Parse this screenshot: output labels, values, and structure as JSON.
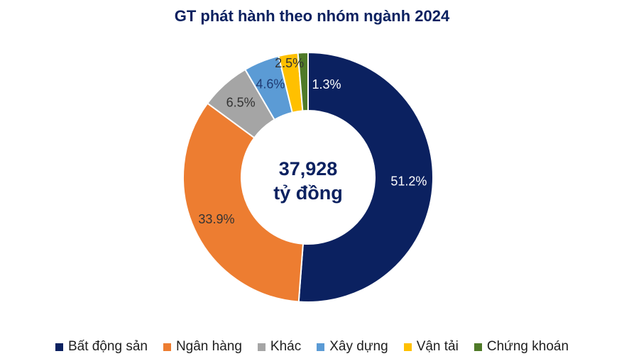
{
  "chart_data": {
    "type": "pie",
    "variant": "donut",
    "title": "GT phát hành theo nhóm ngành 2024",
    "center_label": [
      "37,928",
      "tỷ đồng"
    ],
    "legend_position": "bottom",
    "slices": [
      {
        "name": "Bất động sản",
        "value": 51.2,
        "label": "51.2%",
        "color": "#0b2160",
        "label_color": "#ffffff"
      },
      {
        "name": "Ngân hàng",
        "value": 33.9,
        "label": "33.9%",
        "color": "#ed7d31",
        "label_color": "#333333"
      },
      {
        "name": "Khác",
        "value": 6.5,
        "label": "6.5%",
        "color": "#a5a5a5",
        "label_color": "#333333"
      },
      {
        "name": "Xây dựng",
        "value": 4.6,
        "label": "4.6%",
        "color": "#5b9bd5",
        "label_color": "#1f3b73"
      },
      {
        "name": "Vận tải",
        "value": 2.5,
        "label": "2.5%",
        "color": "#ffc000",
        "label_color": "#333333"
      },
      {
        "name": "Chứng khoán",
        "value": 1.3,
        "label": "1.3%",
        "color": "#4f7a28",
        "label_color": "#ffffff"
      }
    ]
  }
}
